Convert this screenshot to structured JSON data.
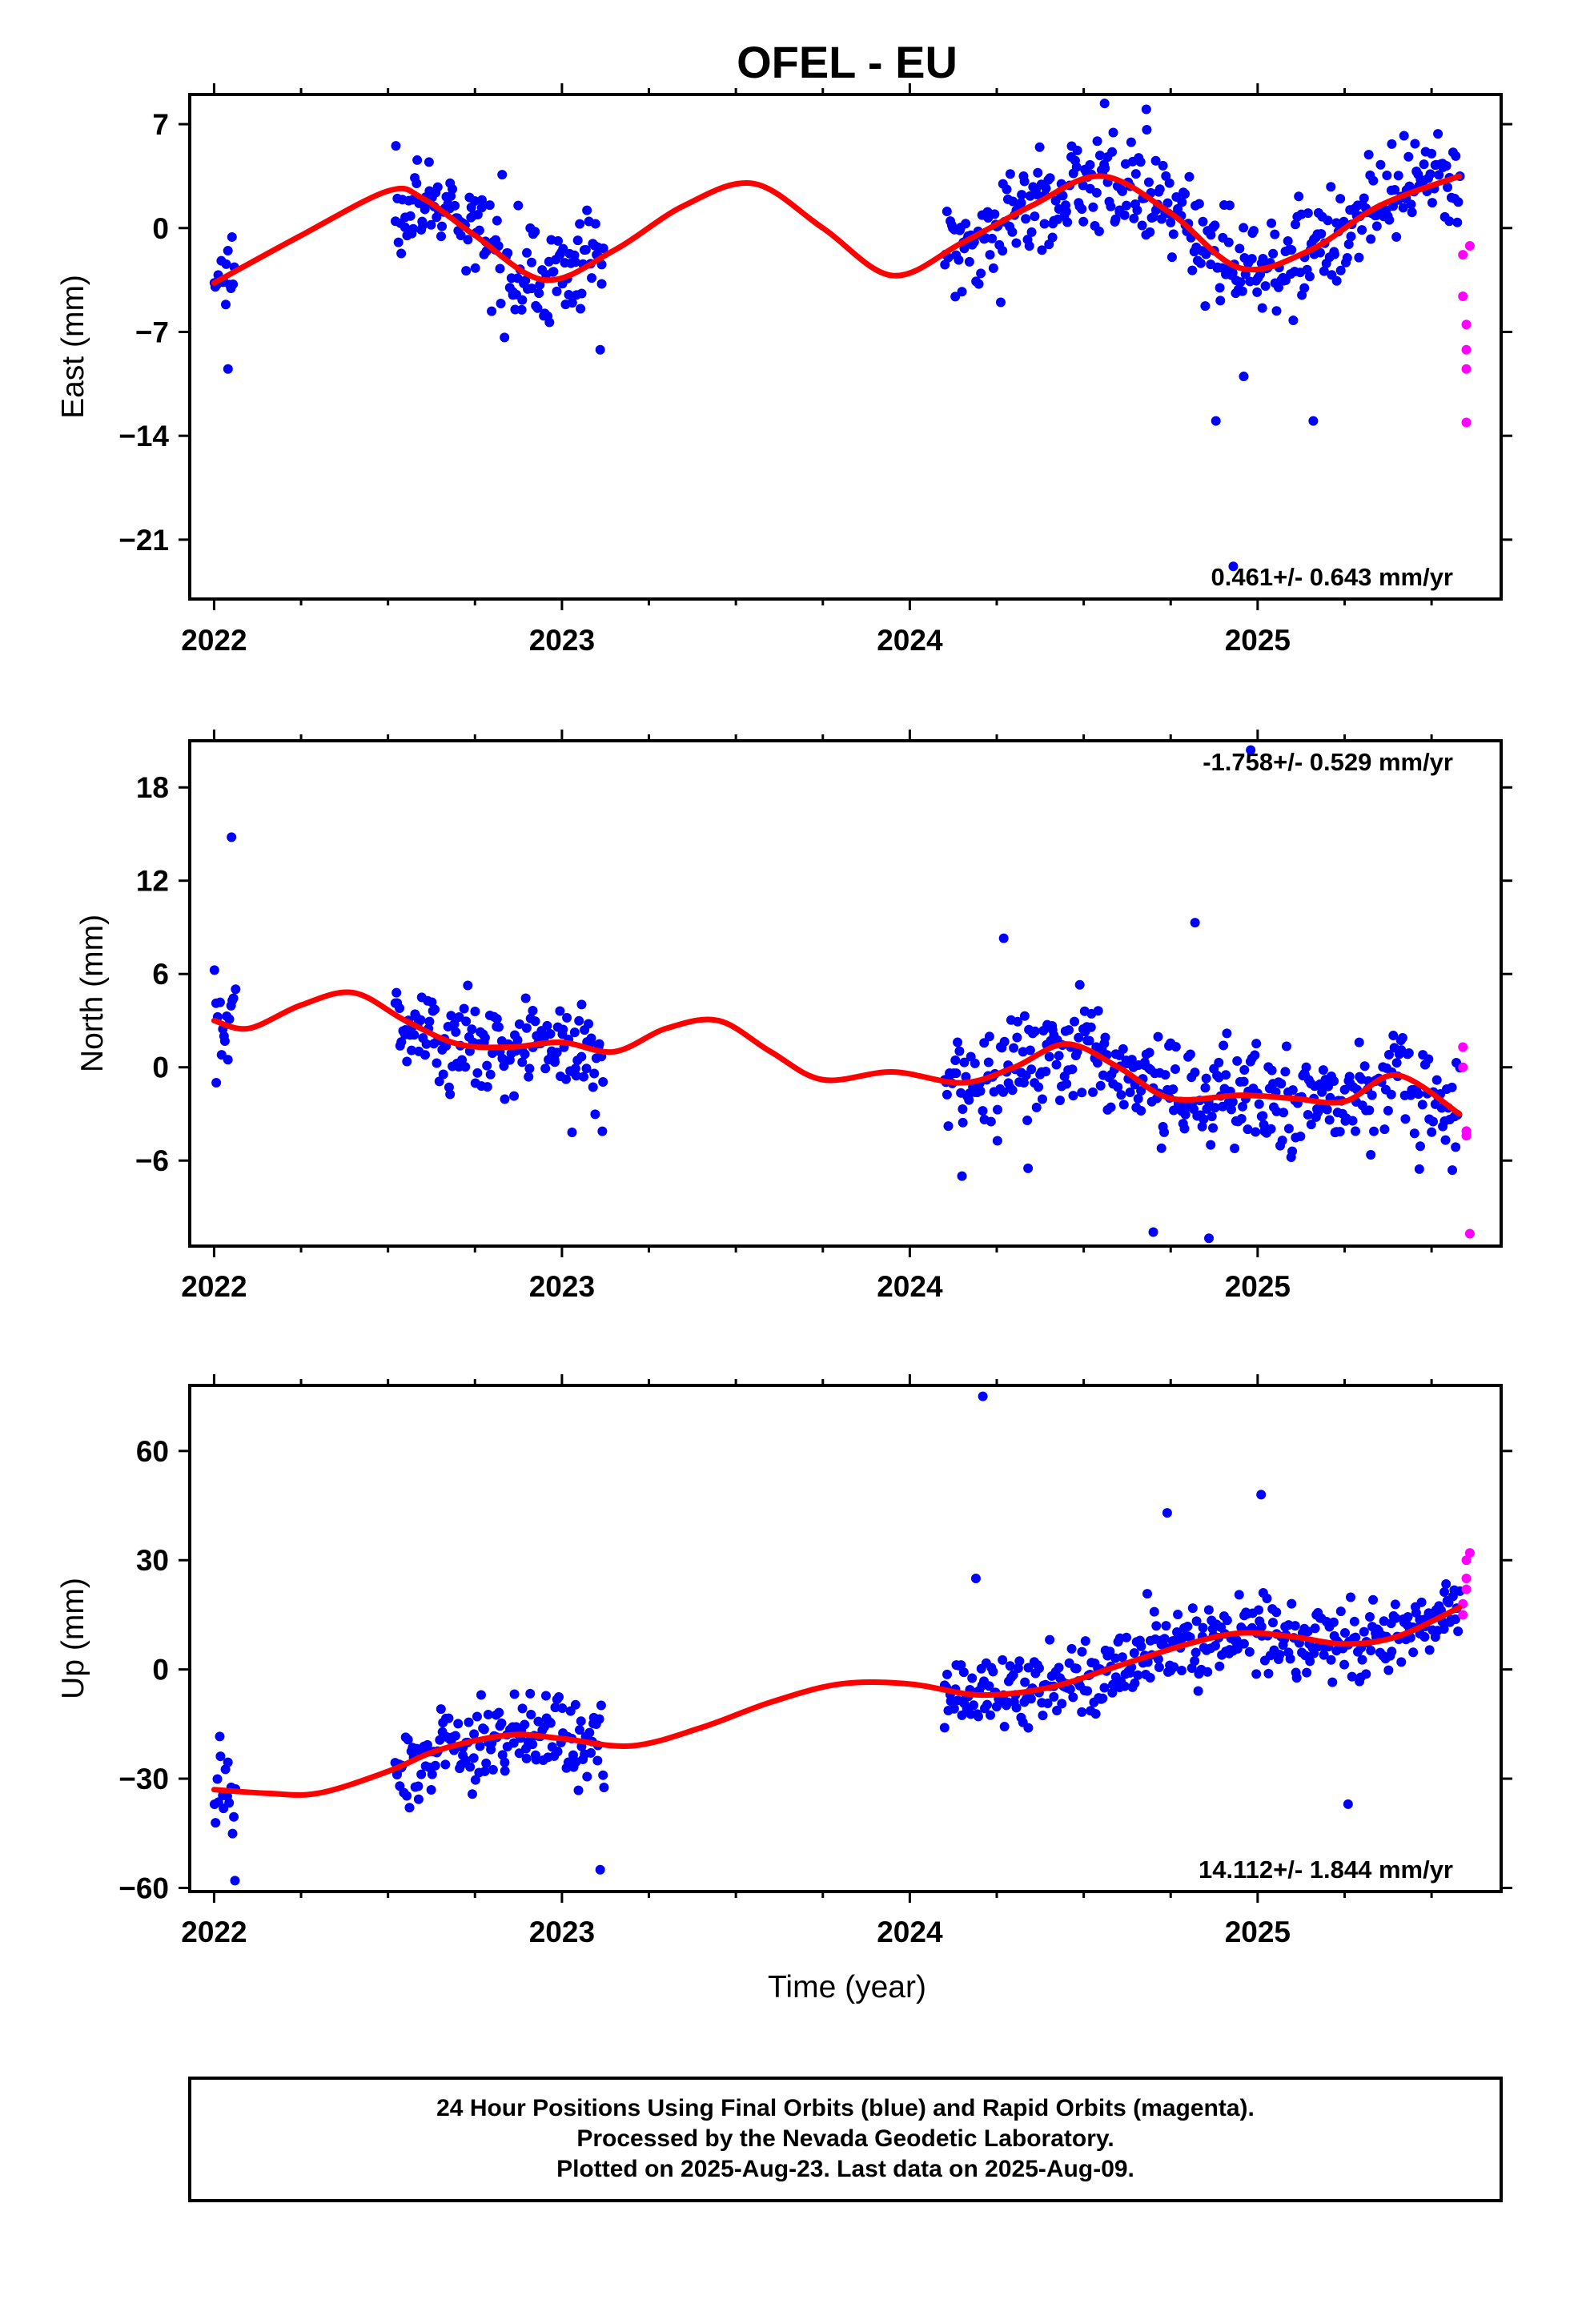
{
  "title": "OFEL - EU",
  "xlabel": "Time (year)",
  "footer": {
    "line1": "24 Hour Positions Using Final Orbits (blue) and Rapid Orbits (magenta).",
    "line2": "Processed by the Nevada Geodetic Laboratory.",
    "line3": "Plotted on 2025-Aug-23. Last data on 2025-Aug-09."
  },
  "colors": {
    "final": "#0000ff",
    "rapid": "#ff00ff",
    "model": "#ff0000",
    "frame": "#000000"
  },
  "chart_data": [
    {
      "type": "scatter",
      "ylabel": "East (mm)",
      "rate_label": "0.461+/- 0.643 mm/yr",
      "xlim": [
        2021.93,
        2025.7
      ],
      "ylim": [
        -25,
        9
      ],
      "x_ticks": [
        2022,
        2023,
        2024,
        2025
      ],
      "x_tick_labels": [
        "2022",
        "2023",
        "2024",
        "2025"
      ],
      "y_ticks": [
        7,
        0,
        -7,
        -14,
        -21
      ],
      "y_tick_labels": [
        "7",
        "0",
        "−7",
        "−14",
        "−21"
      ],
      "grid": false,
      "series": [
        {
          "role": "final",
          "segments": [
            {
              "x": [
                2022.0,
                2022.06
              ],
              "trend": [
                -3.5,
                -2.0
              ],
              "noise": 1.6
            },
            {
              "x": [
                2022.52,
                2023.12
              ],
              "trend": [
                3.3,
                -1.5
              ],
              "noise": 1.6
            },
            {
              "x": [
                2024.1,
                2025.58
              ],
              "trend": [
                -1.0,
                3.2
              ],
              "noise": 1.6
            }
          ],
          "outliers": [
            {
              "x": 2024.88,
              "y": -13.0
            },
            {
              "x": 2025.16,
              "y": -13.0
            },
            {
              "x": 2024.96,
              "y": -10.0
            },
            {
              "x": 2022.04,
              "y": -9.5
            },
            {
              "x": 2024.56,
              "y": 8.4
            },
            {
              "x": 2024.68,
              "y": 8.0
            },
            {
              "x": 2023.11,
              "y": -8.2
            },
            {
              "x": 2024.93,
              "y": -22.8
            }
          ]
        },
        {
          "role": "rapid",
          "x": [
            2025.59,
            2025.59,
            2025.6,
            2025.6,
            2025.6,
            2025.6,
            2025.61
          ],
          "y": [
            -1.8,
            -4.6,
            -6.5,
            -8.2,
            -9.5,
            -13.1,
            -1.2
          ]
        },
        {
          "role": "model",
          "x": [
            2022.0,
            2022.25,
            2022.5,
            2022.6,
            2022.75,
            2022.95,
            2023.15,
            2023.35,
            2023.55,
            2023.75,
            2023.95,
            2024.15,
            2024.35,
            2024.55,
            2024.75,
            2024.95,
            2025.15,
            2025.35,
            2025.58
          ],
          "y": [
            -3.7,
            -0.5,
            2.5,
            2.0,
            -0.5,
            -3.5,
            -1.5,
            1.5,
            3.0,
            0.0,
            -3.2,
            -1.0,
            1.5,
            3.5,
            1.0,
            -2.7,
            -1.5,
            1.5,
            3.5
          ]
        }
      ]
    },
    {
      "type": "scatter",
      "ylabel": "North (mm)",
      "rate_label": "-1.758+/- 0.529 mm/yr",
      "xlim": [
        2021.93,
        2025.7
      ],
      "ylim": [
        -11.5,
        21
      ],
      "x_ticks": [
        2022,
        2023,
        2024,
        2025
      ],
      "x_tick_labels": [
        "2022",
        "2023",
        "2024",
        "2025"
      ],
      "y_ticks": [
        18,
        12,
        6,
        0,
        -6
      ],
      "y_tick_labels": [
        "18",
        "12",
        "6",
        "0",
        "−6"
      ],
      "grid": false,
      "series": [
        {
          "role": "final",
          "segments": [
            {
              "x": [
                2022.0,
                2022.06
              ],
              "trend": [
                3.0,
                3.0
              ],
              "noise": 2.0
            },
            {
              "x": [
                2022.52,
                2023.12
              ],
              "trend": [
                3.0,
                1.5
              ],
              "noise": 1.6
            },
            {
              "x": [
                2024.1,
                2025.58
              ],
              "trend": [
                0.0,
                -1.5
              ],
              "noise": 1.7
            }
          ],
          "outliers": [
            {
              "x": 2022.05,
              "y": 14.8
            },
            {
              "x": 2024.82,
              "y": 9.3
            },
            {
              "x": 2024.27,
              "y": 8.3
            },
            {
              "x": 2024.98,
              "y": 20.4
            },
            {
              "x": 2024.7,
              "y": -10.6
            },
            {
              "x": 2024.86,
              "y": -11.0
            },
            {
              "x": 2024.15,
              "y": -7.0
            },
            {
              "x": 2024.34,
              "y": -6.5
            }
          ]
        },
        {
          "role": "rapid",
          "x": [
            2025.59,
            2025.59,
            2025.6,
            2025.6,
            2025.61
          ],
          "y": [
            1.3,
            0.0,
            -4.1,
            -4.4,
            -10.7
          ]
        },
        {
          "role": "model",
          "x": [
            2022.0,
            2022.1,
            2022.25,
            2022.4,
            2022.55,
            2022.7,
            2022.85,
            2023.0,
            2023.15,
            2023.3,
            2023.45,
            2023.6,
            2023.75,
            2023.95,
            2024.15,
            2024.3,
            2024.45,
            2024.6,
            2024.75,
            2024.95,
            2025.1,
            2025.25,
            2025.4,
            2025.58
          ],
          "y": [
            3.0,
            2.5,
            4.0,
            4.8,
            3.0,
            1.5,
            1.3,
            1.6,
            1.0,
            2.5,
            3.0,
            1.0,
            -0.8,
            -0.3,
            -1.0,
            0.0,
            1.5,
            0.0,
            -2.0,
            -1.8,
            -2.0,
            -2.2,
            -0.5,
            -3.0
          ]
        }
      ]
    },
    {
      "type": "scatter",
      "ylabel": "Up (mm)",
      "rate_label": "14.112+/- 1.844 mm/yr",
      "xlim": [
        2021.93,
        2025.7
      ],
      "ylim": [
        -61,
        78
      ],
      "x_ticks": [
        2022,
        2023,
        2024,
        2025
      ],
      "x_tick_labels": [
        "2022",
        "2023",
        "2024",
        "2025"
      ],
      "y_ticks": [
        60,
        30,
        0,
        -30,
        -60
      ],
      "y_tick_labels": [
        "60",
        "30",
        "0",
        "−30",
        "−60"
      ],
      "grid": false,
      "series": [
        {
          "role": "final",
          "segments": [
            {
              "x": [
                2022.0,
                2022.06
              ],
              "trend": [
                -35,
                -32
              ],
              "noise": 7.0
            },
            {
              "x": [
                2022.52,
                2023.12
              ],
              "trend": [
                -30,
                -18
              ],
              "noise": 6.0
            },
            {
              "x": [
                2024.1,
                2025.58
              ],
              "trend": [
                -8,
                15
              ],
              "noise": 5.0
            }
          ],
          "outliers": [
            {
              "x": 2024.21,
              "y": 75
            },
            {
              "x": 2024.19,
              "y": 25
            },
            {
              "x": 2025.01,
              "y": 48
            },
            {
              "x": 2024.74,
              "y": 43
            },
            {
              "x": 2025.26,
              "y": -37
            },
            {
              "x": 2023.11,
              "y": -55
            },
            {
              "x": 2022.06,
              "y": -58
            },
            {
              "x": 2024.1,
              "y": -16
            }
          ]
        },
        {
          "role": "rapid",
          "x": [
            2025.59,
            2025.59,
            2025.6,
            2025.6,
            2025.6,
            2025.61
          ],
          "y": [
            15,
            18,
            22,
            25,
            30,
            32
          ]
        },
        {
          "role": "model",
          "x": [
            2022.0,
            2022.15,
            2022.3,
            2022.5,
            2022.65,
            2022.85,
            2023.0,
            2023.2,
            2023.4,
            2023.6,
            2023.8,
            2024.0,
            2024.2,
            2024.4,
            2024.6,
            2024.8,
            2024.95,
            2025.1,
            2025.25,
            2025.4,
            2025.58
          ],
          "y": [
            -33,
            -34,
            -34,
            -28,
            -22,
            -18,
            -19,
            -21,
            -16,
            -9,
            -4,
            -4,
            -7,
            -5,
            1,
            7,
            10,
            9,
            7,
            9,
            17
          ]
        }
      ]
    }
  ]
}
